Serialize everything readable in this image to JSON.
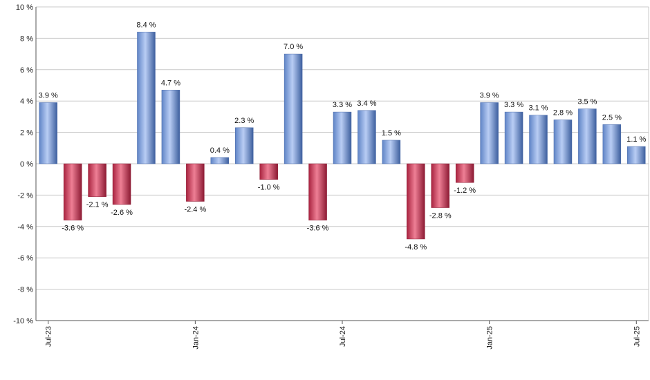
{
  "chart_data": {
    "type": "bar",
    "title": "",
    "xlabel": "",
    "ylabel": "",
    "ylim": [
      -10,
      10
    ],
    "y_ticks": [
      10,
      8,
      6,
      4,
      2,
      0,
      -2,
      -4,
      -6,
      -8,
      -10
    ],
    "y_tick_labels": [
      "10 %",
      "8 %",
      "6 %",
      "4 %",
      "2 %",
      "0 %",
      "-2 %",
      "-4 %",
      "-6 %",
      "-8 %",
      "-10 %"
    ],
    "x_tick_labels": [
      {
        "index": 0,
        "label": "Jul-23"
      },
      {
        "index": 6,
        "label": "Jan-24"
      },
      {
        "index": 12,
        "label": "Jul-24"
      },
      {
        "index": 18,
        "label": "Jan-25"
      },
      {
        "index": 24,
        "label": "Jul-25"
      }
    ],
    "categories": [
      "Jul-23",
      "Aug-23",
      "Sep-23",
      "Oct-23",
      "Nov-23",
      "Dec-23",
      "Jan-24",
      "Feb-24",
      "Mar-24",
      "Apr-24",
      "May-24",
      "Jun-24",
      "Jul-24",
      "Aug-24",
      "Sep-24",
      "Oct-24",
      "Nov-24",
      "Dec-24",
      "Jan-25",
      "Feb-25",
      "Mar-25",
      "Apr-25",
      "May-25",
      "Jun-25",
      "Jul-25"
    ],
    "values": [
      3.9,
      -3.6,
      -2.1,
      -2.6,
      8.4,
      4.7,
      -2.4,
      0.4,
      2.3,
      -1.0,
      7.0,
      -3.6,
      3.3,
      3.4,
      1.5,
      -4.8,
      -2.8,
      -1.2,
      3.9,
      3.3,
      3.1,
      2.8,
      3.5,
      2.5,
      1.1
    ],
    "value_labels": [
      "3.9 %",
      "-3.6 %",
      "-2.1 %",
      "-2.6 %",
      "8.4 %",
      "4.7 %",
      "-2.4 %",
      "0.4 %",
      "2.3 %",
      "-1.0 %",
      "7.0 %",
      "-3.6 %",
      "3.3 %",
      "3.4 %",
      "1.5 %",
      "-4.8 %",
      "-2.8 %",
      "-1.2 %",
      "3.9 %",
      "3.3 %",
      "3.1 %",
      "2.8 %",
      "3.5 %",
      "2.5 %",
      "1.1 %"
    ],
    "grid": true,
    "legend": "none",
    "colors": {
      "positive": "#7fa1e0",
      "negative": "#c63a5a",
      "grid": "#c8c8c8",
      "axis": "#555555"
    }
  }
}
